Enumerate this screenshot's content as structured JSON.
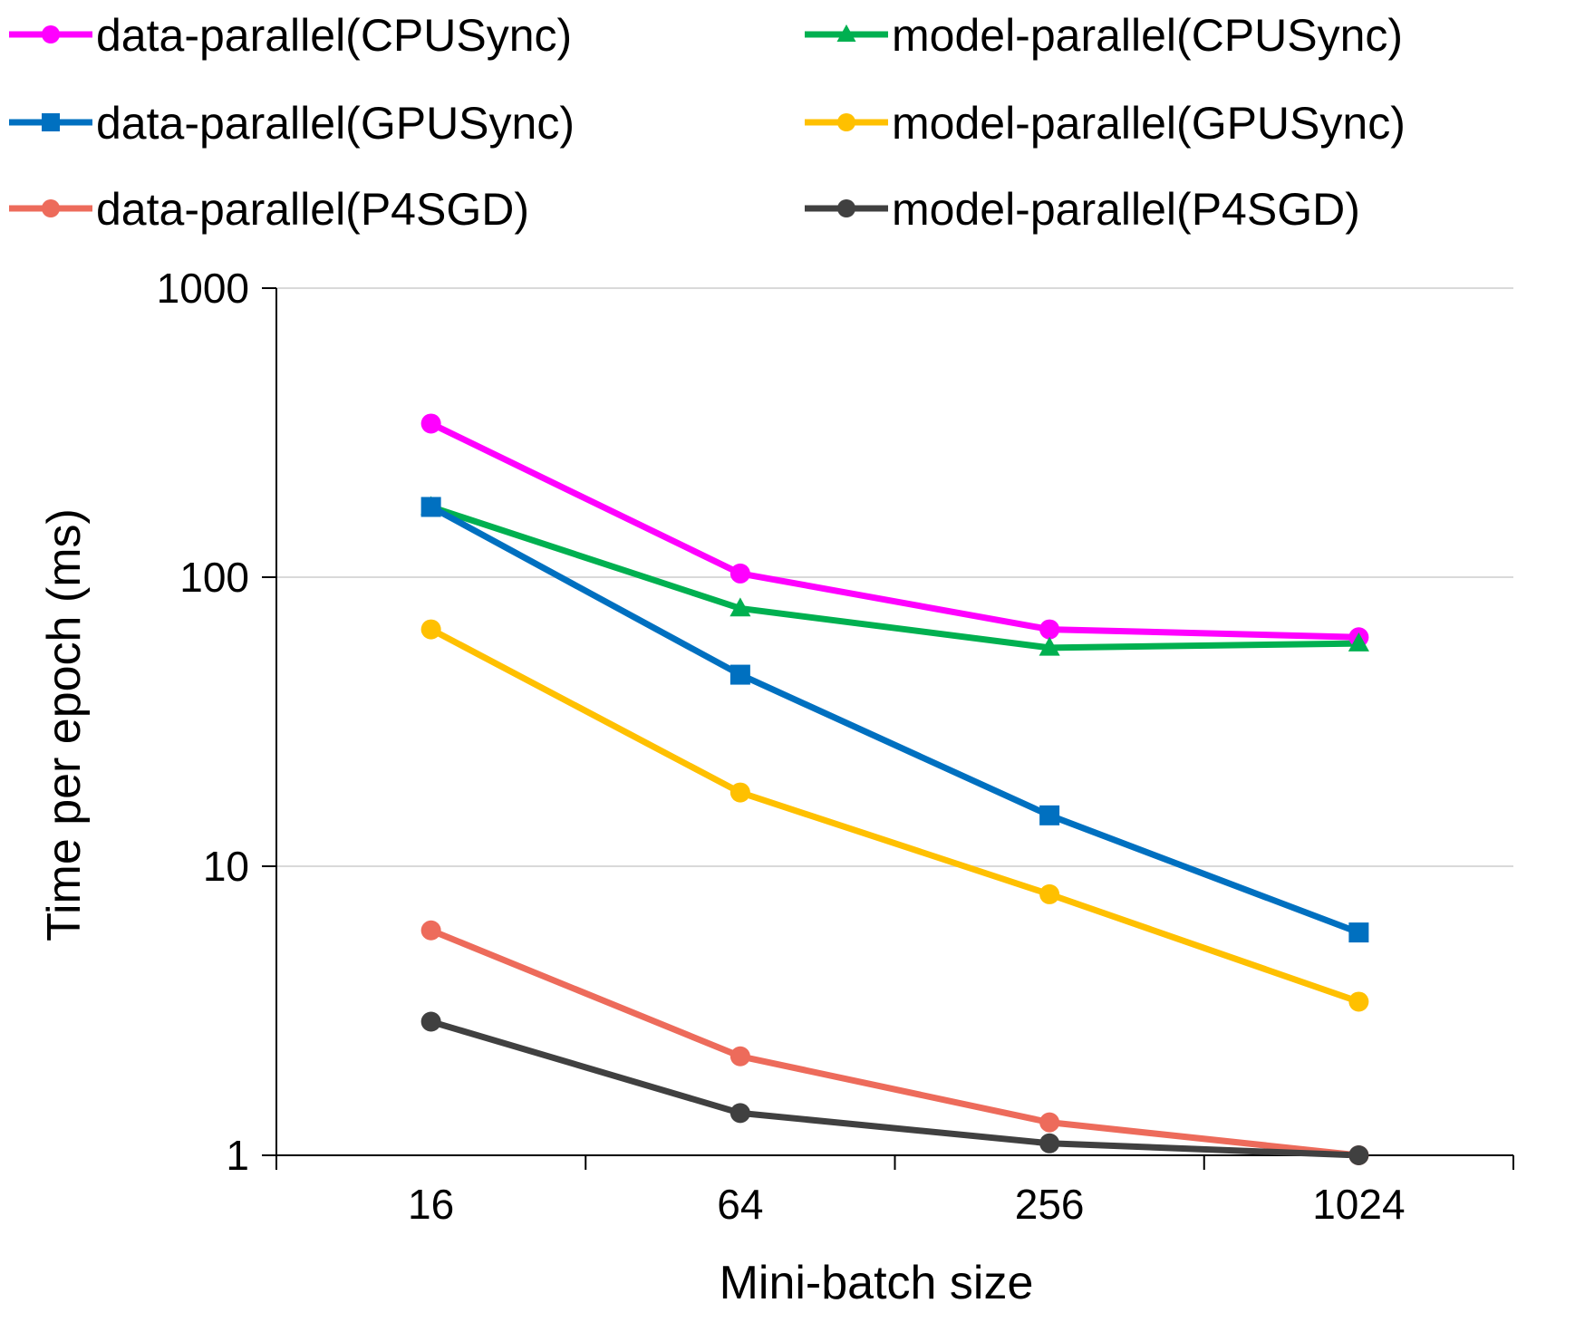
{
  "chart_data": {
    "type": "line",
    "title": "",
    "xlabel": "Mini-batch size",
    "ylabel": "Time per epoch (ms)",
    "yscale": "log",
    "ylim": [
      1,
      1000
    ],
    "yticks": [
      "1",
      "10",
      "100",
      "1000"
    ],
    "categories": [
      "16",
      "64",
      "256",
      "1024"
    ],
    "grid": true,
    "legend_position": "top",
    "series": [
      {
        "name": "data-parallel(CPUSync)",
        "color": "#ff00ff",
        "marker": "circle",
        "values": [
          340,
          103,
          66,
          62
        ]
      },
      {
        "name": "model-parallel(CPUSync)",
        "color": "#00b050",
        "marker": "triangle",
        "values": [
          175,
          78,
          57,
          59
        ]
      },
      {
        "name": "data-parallel(GPUSync)",
        "color": "#0070c0",
        "marker": "square",
        "values": [
          175,
          46,
          15,
          5.9
        ]
      },
      {
        "name": "model-parallel(GPUSync)",
        "color": "#ffc000",
        "marker": "circle",
        "values": [
          66,
          18,
          8,
          3.4
        ]
      },
      {
        "name": "data-parallel(P4SGD)",
        "color": "#ed6b5b",
        "marker": "circle",
        "values": [
          6,
          2.2,
          1.3,
          1.0
        ]
      },
      {
        "name": "model-parallel(P4SGD)",
        "color": "#404040",
        "marker": "circle",
        "values": [
          2.9,
          1.4,
          1.1,
          1.0
        ]
      }
    ]
  }
}
